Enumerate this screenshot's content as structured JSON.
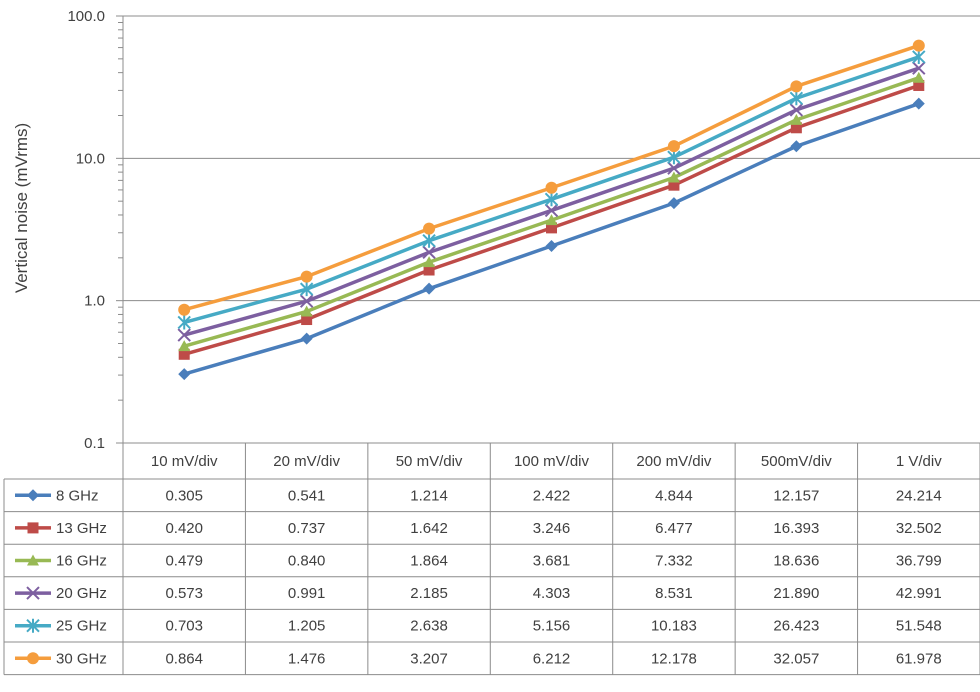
{
  "chart_data": {
    "type": "line",
    "y_scale": "log",
    "ylabel": "Vertical noise (mVrms)",
    "ylim": [
      0.1,
      100
    ],
    "y_ticks": [
      "100.0",
      "10.0",
      "1.0",
      "0.1"
    ],
    "y_tick_values": [
      100,
      10,
      1,
      0.1
    ],
    "grid": "major horizontal",
    "legend": "data table below plot",
    "categories": [
      "10 mV/div",
      "20 mV/div",
      "50 mV/div",
      "100 mV/div",
      "200 mV/div",
      "500mV/div",
      "1 V/div"
    ],
    "series": [
      {
        "name": "8 GHz",
        "marker": "diamond",
        "color": "#4A7EBB",
        "values": [
          "0.305",
          "0.541",
          "1.214",
          "2.422",
          "4.844",
          "12.157",
          "24.214"
        ]
      },
      {
        "name": "13 GHz",
        "marker": "square",
        "color": "#BE4B48",
        "values": [
          "0.420",
          "0.737",
          "1.642",
          "3.246",
          "6.477",
          "16.393",
          "32.502"
        ]
      },
      {
        "name": "16 GHz",
        "marker": "triangle",
        "color": "#98B954",
        "values": [
          "0.479",
          "0.840",
          "1.864",
          "3.681",
          "7.332",
          "18.636",
          "36.799"
        ]
      },
      {
        "name": "20 GHz",
        "marker": "x",
        "color": "#7D5FA0",
        "values": [
          "0.573",
          "0.991",
          "2.185",
          "4.303",
          "8.531",
          "21.890",
          "42.991"
        ]
      },
      {
        "name": "25 GHz",
        "marker": "star",
        "color": "#46AAC5",
        "values": [
          "0.703",
          "1.205",
          "2.638",
          "5.156",
          "10.183",
          "26.423",
          "51.548"
        ]
      },
      {
        "name": "30 GHz",
        "marker": "circle",
        "color": "#F59D3D",
        "values": [
          "0.864",
          "1.476",
          "3.207",
          "6.212",
          "12.178",
          "32.057",
          "61.978"
        ]
      }
    ]
  }
}
